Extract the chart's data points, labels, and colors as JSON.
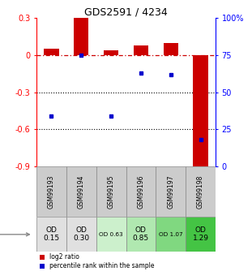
{
  "title": "GDS2591 / 4234",
  "samples": [
    "GSM99193",
    "GSM99194",
    "GSM99195",
    "GSM99196",
    "GSM99197",
    "GSM99198"
  ],
  "log2_ratio": [
    0.05,
    0.31,
    0.04,
    0.08,
    0.1,
    -0.93
  ],
  "percentile_rank": [
    34,
    75,
    34,
    63,
    62,
    18
  ],
  "bar_color": "#cc0000",
  "dot_color": "#0000cc",
  "ylim_left": [
    -0.9,
    0.3
  ],
  "ylim_right": [
    0,
    100
  ],
  "yticks_left": [
    0.3,
    0.0,
    -0.3,
    -0.6,
    -0.9
  ],
  "yticks_right": [
    100,
    75,
    50,
    25,
    0
  ],
  "ytick_labels_left": [
    "0.3",
    "0",
    "-0.3",
    "-0.6",
    "-0.9"
  ],
  "ytick_labels_right": [
    "100%",
    "75",
    "50",
    "25",
    "0"
  ],
  "hlines_dotted": [
    -0.3,
    -0.6
  ],
  "hline_dashdot": 0.0,
  "age_labels": [
    "OD\n0.15",
    "OD\n0.30",
    "OD 0.63",
    "OD\n0.85",
    "OD 1.07",
    "OD\n1.29"
  ],
  "age_colors": [
    "#e0e0e0",
    "#e0e0e0",
    "#ccf0cc",
    "#b0e8b0",
    "#80d880",
    "#44c444"
  ],
  "age_fontsize_big": [
    true,
    true,
    false,
    true,
    false,
    true
  ],
  "legend_red": "log2 ratio",
  "legend_blue": "percentile rank within the sample",
  "background_color": "#ffffff"
}
